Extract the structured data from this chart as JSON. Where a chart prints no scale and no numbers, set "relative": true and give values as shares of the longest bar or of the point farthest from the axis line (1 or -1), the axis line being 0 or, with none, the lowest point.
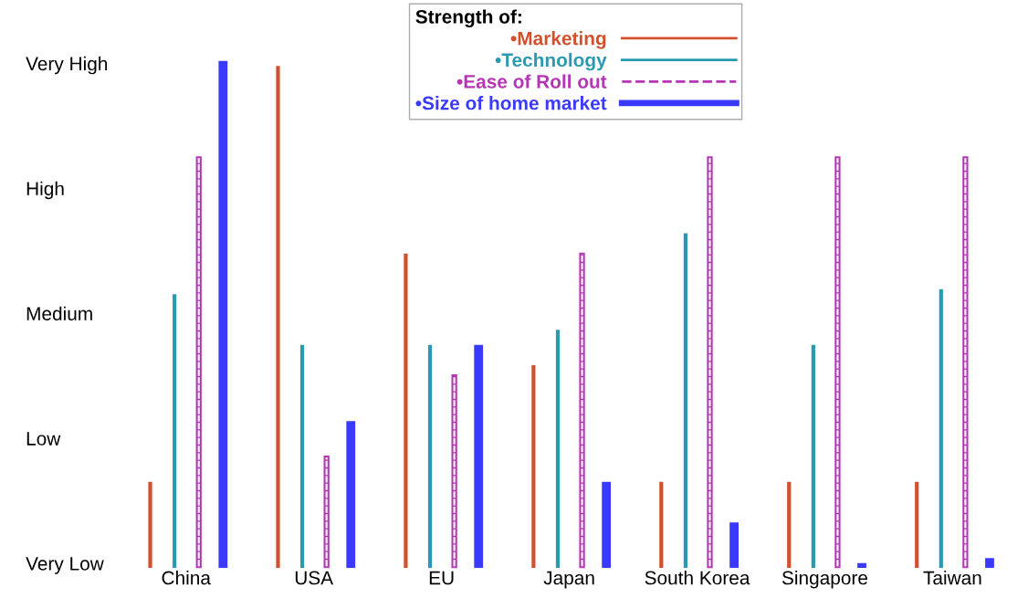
{
  "chart_data": {
    "type": "bar",
    "relative": true,
    "categories": [
      "China",
      "USA",
      "EU",
      "Japan",
      "South Korea",
      "Singapore",
      "Taiwan"
    ],
    "legend_title": "Strength of:",
    "annotations": [
      "Very Low",
      "Low",
      "Medium",
      "High",
      "Very High"
    ],
    "series": [
      {
        "name": "•Marketing",
        "color": "#d2502e",
        "values": [
          0.17,
          0.99,
          0.62,
          0.4,
          0.17,
          0.17,
          0.17
        ]
      },
      {
        "name": "•Technology",
        "color": "#2a9ab0",
        "values": [
          0.54,
          0.44,
          0.44,
          0.47,
          0.66,
          0.44,
          0.55
        ]
      },
      {
        "name": "•Ease of Roll out",
        "color": "#b535b5",
        "line_style": "dashed",
        "values": [
          0.81,
          0.22,
          0.38,
          0.62,
          0.81,
          0.81,
          0.81
        ]
      },
      {
        "name": "•Size of home market",
        "color": "#3a3aff",
        "values": [
          1,
          0.29,
          0.44,
          0.17,
          0.09,
          0.01,
          0.02
        ]
      }
    ],
    "grid": false,
    "legend": "top"
  }
}
